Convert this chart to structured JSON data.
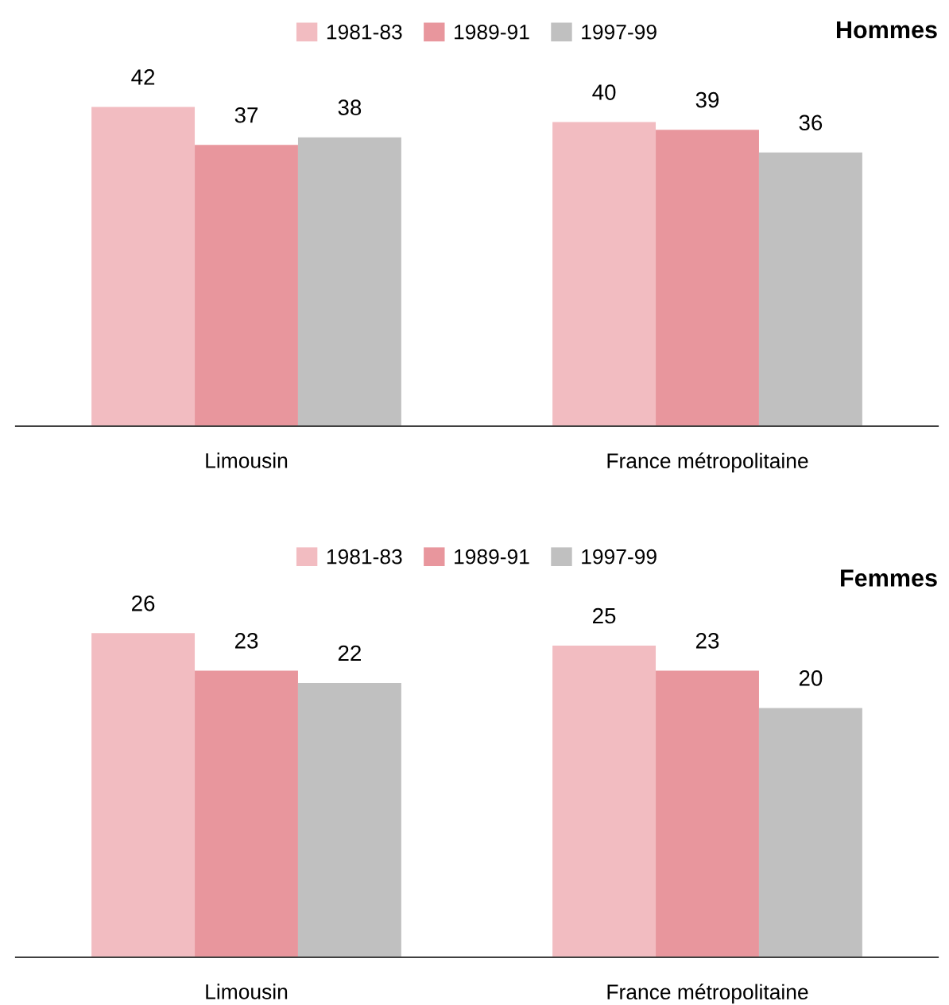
{
  "chart_data": [
    {
      "type": "bar",
      "title": "Hommes",
      "categories": [
        "Limousin",
        "France métropolitaine"
      ],
      "data_labels": true,
      "legend": "top",
      "series": [
        {
          "name": "1981-83",
          "color": "#f2bcc1",
          "values": [
            42,
            40
          ]
        },
        {
          "name": "1989-91",
          "color": "#e8969d",
          "values": [
            37,
            39
          ]
        },
        {
          "name": "1997-99",
          "color": "#c0c0c0",
          "values": [
            38,
            36
          ]
        }
      ]
    },
    {
      "type": "bar",
      "title": "Femmes",
      "categories": [
        "Limousin",
        "France métropolitaine"
      ],
      "data_labels": true,
      "legend": "top",
      "series": [
        {
          "name": "1981-83",
          "color": "#f2bcc1",
          "values": [
            26,
            25
          ]
        },
        {
          "name": "1989-91",
          "color": "#e8969d",
          "values": [
            23,
            23
          ]
        },
        {
          "name": "1997-99",
          "color": "#c0c0c0",
          "values": [
            22,
            20
          ]
        }
      ]
    }
  ]
}
